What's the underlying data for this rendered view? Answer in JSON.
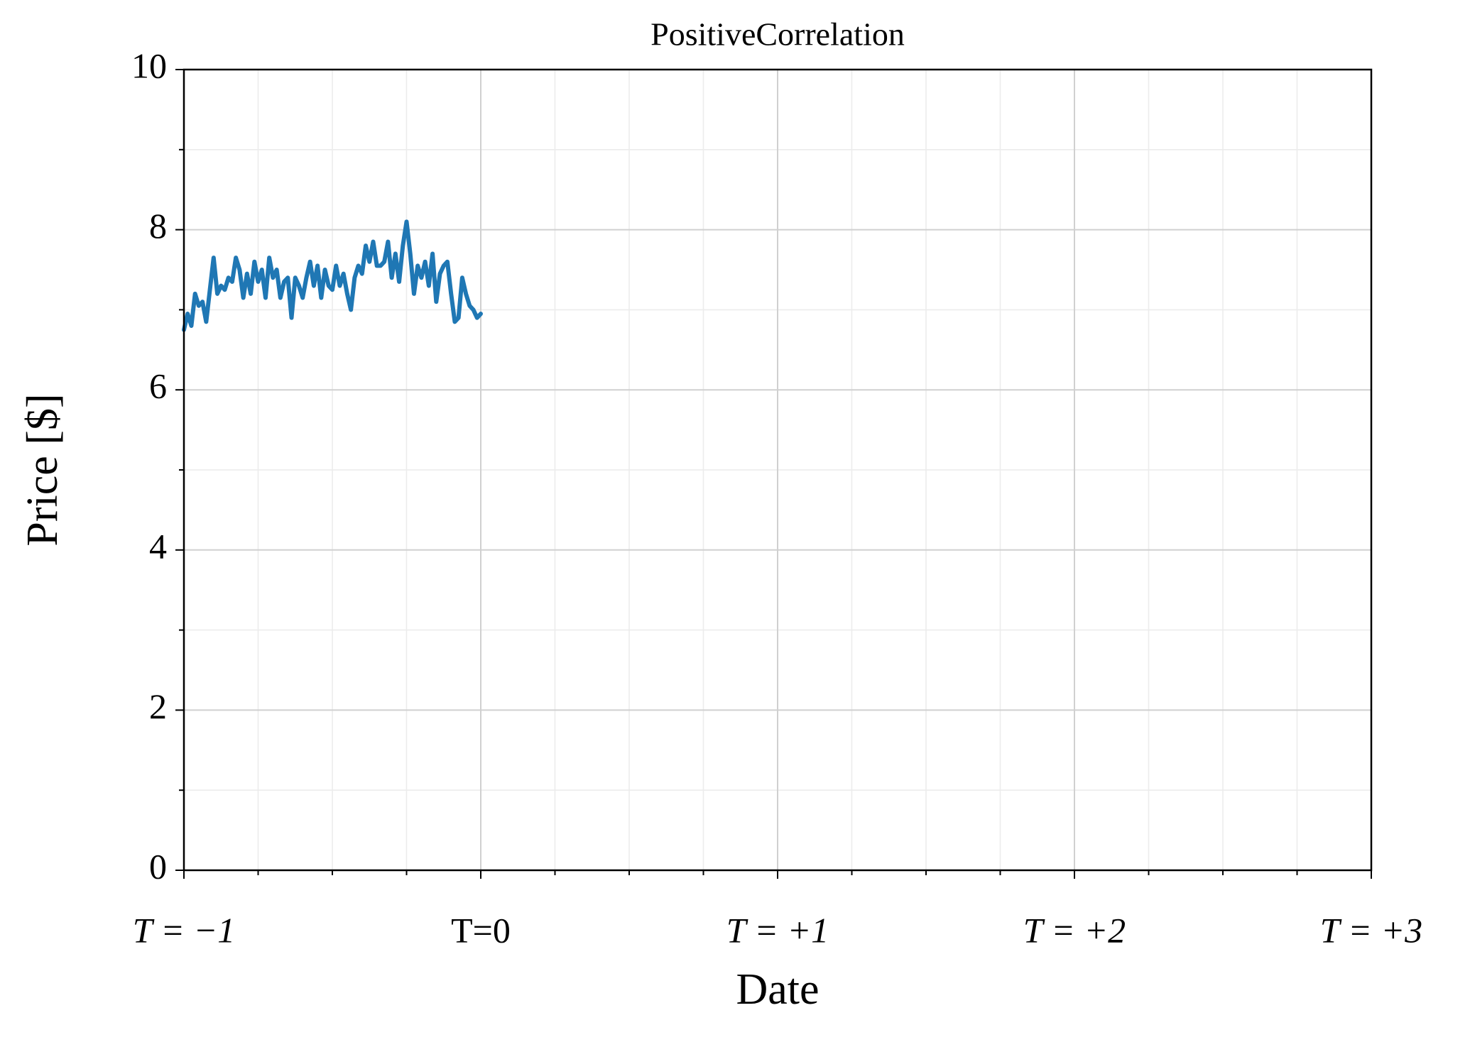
{
  "chart_data": {
    "type": "line",
    "title": "PositiveCorrelation",
    "x_label": "Date",
    "y_label": "Price [$]",
    "xlim": [
      -1,
      3
    ],
    "ylim": [
      0,
      10
    ],
    "xticks": [
      {
        "value": -1,
        "label": "T = −1"
      },
      {
        "value": 0,
        "label": "T=0"
      },
      {
        "value": 1,
        "label": "T = +1"
      },
      {
        "value": 2,
        "label": "T = +2"
      },
      {
        "value": 3,
        "label": "T = +3"
      }
    ],
    "xminor_ticks": [
      -0.75,
      -0.5,
      -0.25,
      0.25,
      0.5,
      0.75,
      1.25,
      1.5,
      1.75,
      2.25,
      2.5,
      2.75
    ],
    "yticks": [
      0,
      2,
      4,
      6,
      8,
      10
    ],
    "yminor_ticks": [
      1,
      3,
      5,
      7,
      9
    ],
    "grid": true,
    "color": "#1f77b4",
    "x": [
      -1,
      -0.9875,
      -0.975,
      -0.9625,
      -0.95,
      -0.9375,
      -0.925,
      -0.9125,
      -0.9,
      -0.8875,
      -0.875,
      -0.8625,
      -0.85,
      -0.8375,
      -0.825,
      -0.8125,
      -0.8,
      -0.7875,
      -0.775,
      -0.7625,
      -0.75,
      -0.7375,
      -0.725,
      -0.7125,
      -0.7,
      -0.6875,
      -0.675,
      -0.6625,
      -0.65,
      -0.6375,
      -0.625,
      -0.6125,
      -0.6,
      -0.5875,
      -0.575,
      -0.5625,
      -0.55,
      -0.5375,
      -0.525,
      -0.5125,
      -0.5,
      -0.4875,
      -0.475,
      -0.4625,
      -0.45,
      -0.4375,
      -0.425,
      -0.4125,
      -0.4,
      -0.3875,
      -0.375,
      -0.3625,
      -0.35,
      -0.3375,
      -0.325,
      -0.3125,
      -0.3,
      -0.2875,
      -0.275,
      -0.2625,
      -0.25,
      -0.2375,
      -0.225,
      -0.2125,
      -0.2,
      -0.1875,
      -0.175,
      -0.1625,
      -0.15,
      -0.1375,
      -0.125,
      -0.1125,
      -0.1,
      -0.0875,
      -0.075,
      -0.0625,
      -0.05,
      -0.0375,
      -0.025,
      -0.0125,
      0
    ],
    "values": [
      6.75,
      6.95,
      6.8,
      7.2,
      7.05,
      7.1,
      6.85,
      7.25,
      7.65,
      7.2,
      7.3,
      7.25,
      7.4,
      7.35,
      7.65,
      7.5,
      7.15,
      7.45,
      7.2,
      7.6,
      7.35,
      7.5,
      7.15,
      7.65,
      7.4,
      7.5,
      7.15,
      7.35,
      7.4,
      6.9,
      7.4,
      7.3,
      7.15,
      7.4,
      7.6,
      7.3,
      7.55,
      7.15,
      7.5,
      7.3,
      7.25,
      7.55,
      7.3,
      7.45,
      7.2,
      7.0,
      7.4,
      7.55,
      7.45,
      7.8,
      7.6,
      7.85,
      7.55,
      7.55,
      7.6,
      7.85,
      7.4,
      7.7,
      7.35,
      7.8,
      8.1,
      7.7,
      7.2,
      7.55,
      7.4,
      7.6,
      7.3,
      7.7,
      7.1,
      7.45,
      7.55,
      7.6,
      7.2,
      6.85,
      6.9,
      7.4,
      7.2,
      7.05,
      7.0,
      6.9,
      6.95
    ]
  }
}
